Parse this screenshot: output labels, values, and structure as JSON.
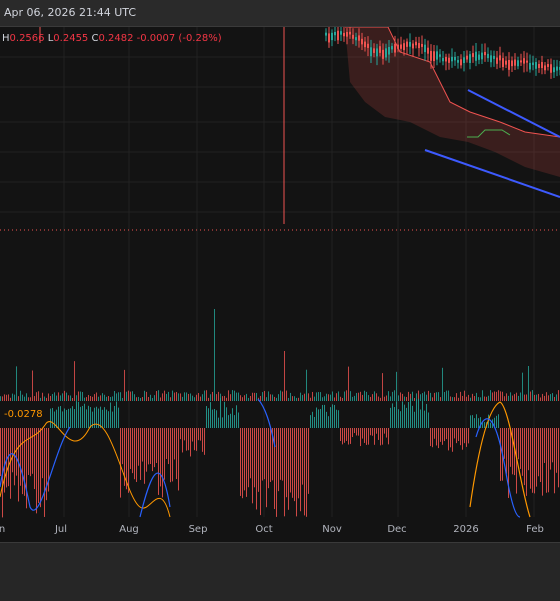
{
  "header": {
    "timestamp": "Apr 06, 2026 21:44 UTC"
  },
  "ohlc": {
    "h_label": "H",
    "h_value": "0.2566",
    "l_label": "L",
    "l_value": "0.2455",
    "c_label": "C",
    "c_value": "0.2482",
    "change": "-0.0007 (-0.28%)"
  },
  "oscillator": {
    "value": "-0.0278"
  },
  "x_axis": {
    "labels": [
      "n",
      "Jul",
      "Aug",
      "Sep",
      "Oct",
      "Nov",
      "Dec",
      "2026",
      "Feb"
    ]
  },
  "colors": {
    "background": "#131313",
    "up": "#26a69a",
    "down": "#ef5350",
    "trendline": "#3d5afe",
    "oscillator_orange": "#ff9800",
    "oscillator_blue": "#2962ff"
  }
}
